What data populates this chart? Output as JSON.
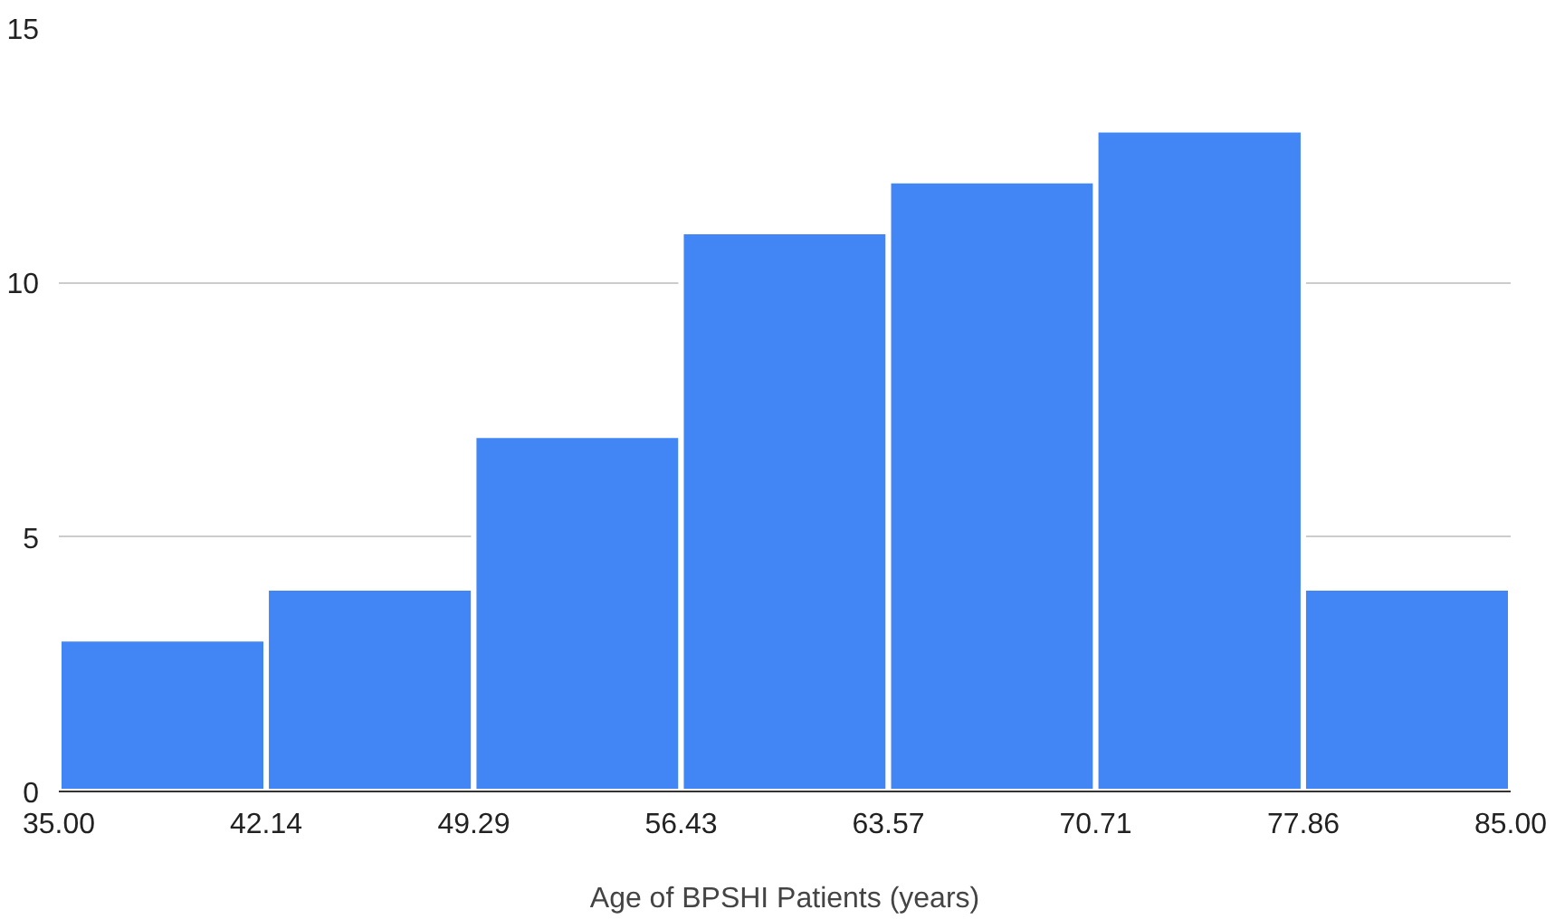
{
  "chart_data": {
    "type": "histogram",
    "xlabel": "Age of BPSHI Patients (years)",
    "bins": [
      35.0,
      42.14,
      49.29,
      56.43,
      63.57,
      70.71,
      77.86,
      85.0
    ],
    "values": [
      3,
      4,
      7,
      11,
      12,
      13,
      4
    ],
    "color": "#4285f4",
    "xlim": [
      35,
      85
    ],
    "xticks": [
      {
        "value": 35,
        "label": "35.00"
      },
      {
        "value": 42.14,
        "label": "42.14"
      },
      {
        "value": 49.29,
        "label": "49.29"
      },
      {
        "value": 56.43,
        "label": "56.43"
      },
      {
        "value": 63.57,
        "label": "63.57"
      },
      {
        "value": 70.71,
        "label": "70.71"
      },
      {
        "value": 77.86,
        "label": "77.86"
      },
      {
        "value": 85,
        "label": "85.00"
      }
    ],
    "ylim": [
      0,
      15
    ],
    "yticks": [
      0,
      5,
      10,
      15
    ],
    "grid": "y"
  }
}
